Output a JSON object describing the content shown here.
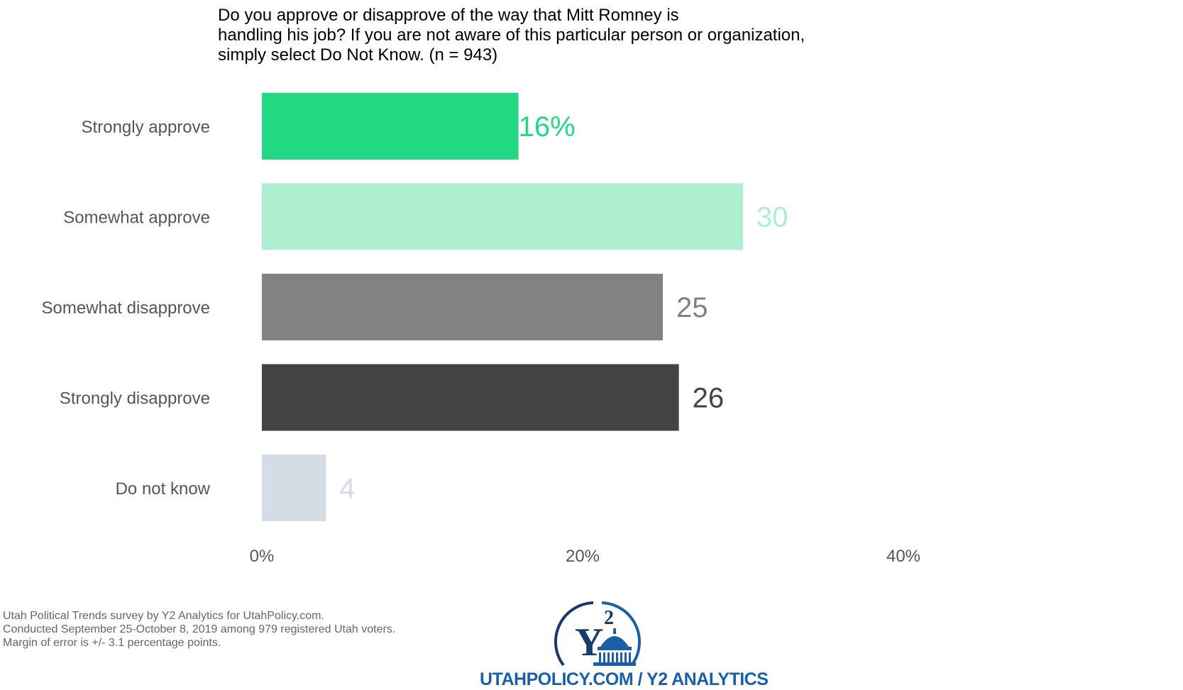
{
  "chart_data": {
    "type": "bar",
    "orientation": "horizontal",
    "title": "Do you approve or disapprove of the way that Mitt Romney is\nhandling his job? If you are not aware of this particular person or organization,\nsimply select Do Not Know. (n = 943)",
    "categories": [
      "Strongly approve",
      "Somewhat approve",
      "Somewhat disapprove",
      "Strongly disapprove",
      "Do not know"
    ],
    "values": [
      16,
      30,
      25,
      26,
      4
    ],
    "value_labels": [
      "16%",
      "30",
      "25",
      "26",
      "4"
    ],
    "colors": [
      "#22d883",
      "#adefd0",
      "#818281",
      "#424343",
      "#d5dce6"
    ],
    "xlim": [
      0,
      40
    ],
    "x_ticks": [
      0,
      20,
      40
    ],
    "x_tick_labels": [
      "0%",
      "20%",
      "40%"
    ],
    "grid": false,
    "legend": "none"
  },
  "footnote": {
    "line1": "Utah Political Trends survey by Y2 Analytics for UtahPolicy.com.",
    "line2": "Conducted September 25-October 8, 2019 among 979 registered Utah voters.",
    "line3": "Margin of error is +/- 3.1 percentage points."
  },
  "logo": {
    "text": "UTAHPOLICY.COM / Y2 ANALYTICS",
    "mark": "Y2",
    "icon": "capitol-dome-icon",
    "color": "#1a5fa8"
  }
}
